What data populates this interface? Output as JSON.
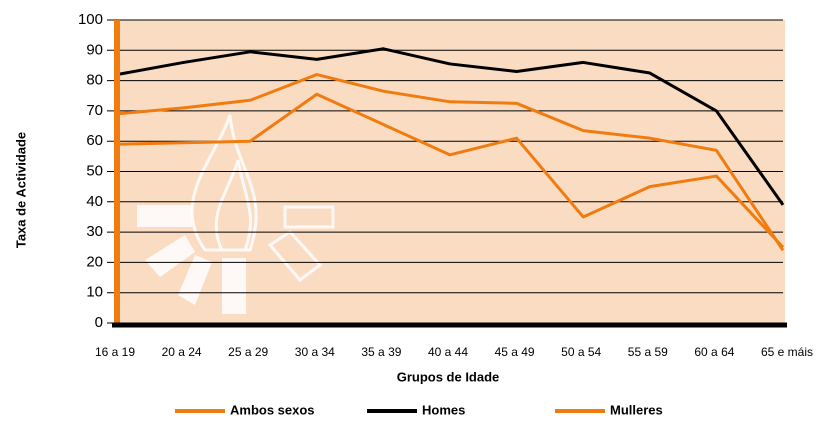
{
  "chart_data": {
    "type": "line",
    "y_label": "Taxa de Actividade",
    "x_label": "Grupos de Idade",
    "categories": [
      "16 a 19",
      "20 a 24",
      "25 a 29",
      "30 a 34",
      "35 a 39",
      "40 a 44",
      "45 a 49",
      "50 a 54",
      "55 a 59",
      "60 a 64",
      "65 e máis"
    ],
    "series": [
      {
        "name": "Ambos sexos",
        "color": "#f07c0f",
        "values": [
          69,
          71,
          73.5,
          82,
          76.5,
          73,
          72.5,
          63.5,
          61,
          57,
          24
        ]
      },
      {
        "name": "Homes",
        "color": "#000000",
        "values": [
          82,
          86,
          89.5,
          87,
          90.5,
          85.5,
          83,
          86,
          82.5,
          70,
          39
        ]
      },
      {
        "name": "Mulleres",
        "color": "#f07c0f",
        "values": [
          59,
          59.5,
          60,
          75.5,
          65.5,
          55.5,
          61,
          35,
          45,
          48.5,
          25
        ]
      }
    ],
    "ylim": [
      0,
      100
    ],
    "yticks": [
      0,
      10,
      20,
      30,
      40,
      50,
      60,
      70,
      80,
      90,
      100
    ],
    "grid": true
  }
}
